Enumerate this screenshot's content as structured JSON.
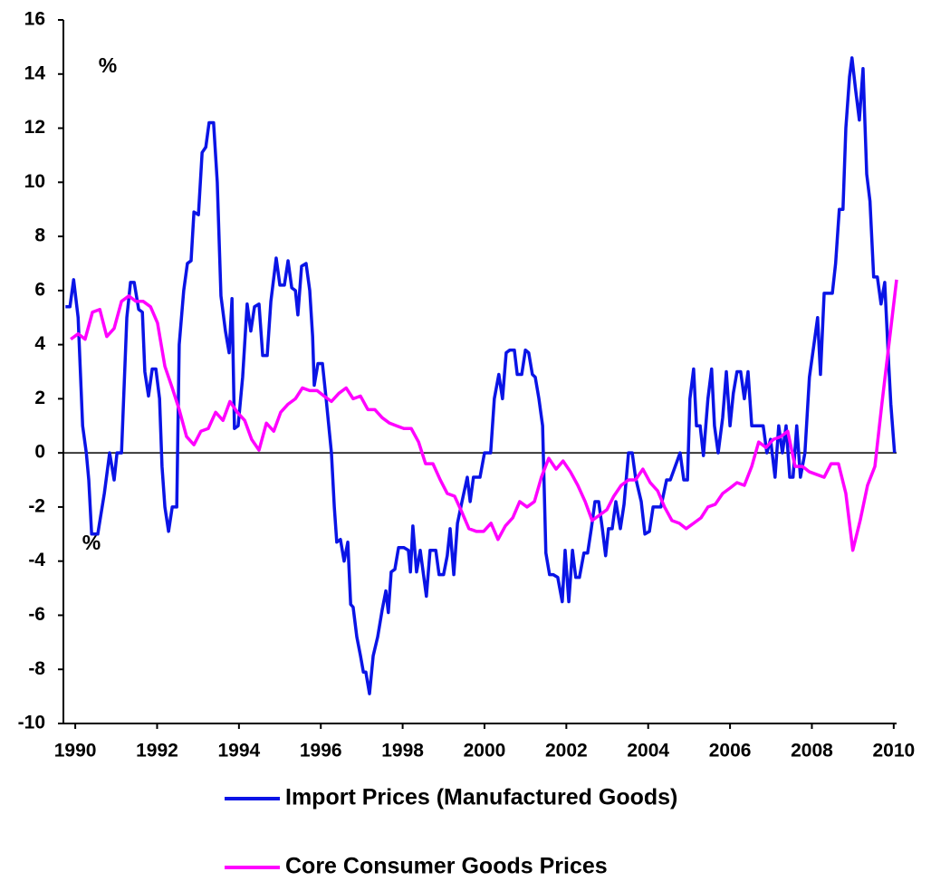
{
  "chart_data": {
    "type": "line",
    "annotations": [
      "%",
      "%"
    ],
    "xlim": [
      1989.71,
      2010.07
    ],
    "xticks": [
      1990,
      1992,
      1994,
      1996,
      1998,
      2000,
      2002,
      2004,
      2006,
      2008,
      2010
    ],
    "ylim": [
      -10,
      16
    ],
    "yticks": [
      -10,
      -8,
      -6,
      -4,
      -2,
      0,
      2,
      4,
      6,
      8,
      10,
      12,
      14,
      16
    ],
    "grid": false,
    "legend": "bottom",
    "series": [
      {
        "name": "Import Prices (Manufactured Goods)",
        "color": "#0a14e6",
        "x": [
          1989.76,
          1989.87,
          1989.96,
          1990.07,
          1990.18,
          1990.27,
          1990.33,
          1990.4,
          1990.55,
          1990.71,
          1990.84,
          1990.95,
          1991.02,
          1991.13,
          1991.26,
          1991.35,
          1991.44,
          1991.55,
          1991.64,
          1991.7,
          1991.79,
          1991.88,
          1991.97,
          1992.06,
          1992.12,
          1992.19,
          1992.28,
          1992.37,
          1992.48,
          1992.54,
          1992.65,
          1992.74,
          1992.83,
          1992.9,
          1993.01,
          1993.1,
          1993.19,
          1993.27,
          1993.38,
          1993.47,
          1993.56,
          1993.67,
          1993.76,
          1993.83,
          1993.89,
          1993.98,
          1994.09,
          1994.2,
          1994.29,
          1994.38,
          1994.49,
          1994.58,
          1994.69,
          1994.78,
          1994.91,
          1995.0,
          1995.11,
          1995.2,
          1995.29,
          1995.38,
          1995.44,
          1995.53,
          1995.64,
          1995.73,
          1995.8,
          1995.84,
          1995.93,
          1996.04,
          1996.13,
          1996.26,
          1996.33,
          1996.39,
          1996.48,
          1996.57,
          1996.66,
          1996.73,
          1996.79,
          1996.88,
          1996.97,
          1997.04,
          1997.1,
          1997.19,
          1997.28,
          1997.39,
          1997.5,
          1997.59,
          1997.65,
          1997.72,
          1997.81,
          1997.9,
          1998.03,
          1998.14,
          1998.19,
          1998.25,
          1998.34,
          1998.43,
          1998.58,
          1998.67,
          1998.81,
          1998.89,
          1999.0,
          1999.09,
          1999.16,
          1999.25,
          1999.34,
          1999.45,
          1999.58,
          1999.65,
          1999.73,
          1999.89,
          2000.0,
          2000.15,
          2000.24,
          2000.35,
          2000.44,
          2000.53,
          2000.62,
          2000.73,
          2000.8,
          2000.91,
          2001.0,
          2001.08,
          2001.17,
          2001.24,
          2001.33,
          2001.42,
          2001.5,
          2001.59,
          2001.68,
          2001.79,
          2001.9,
          2001.97,
          2002.06,
          2002.15,
          2002.23,
          2002.32,
          2002.43,
          2002.52,
          2002.61,
          2002.7,
          2002.79,
          2002.88,
          2002.96,
          2003.03,
          2003.12,
          2003.21,
          2003.32,
          2003.41,
          2003.52,
          2003.61,
          2003.69,
          2003.83,
          2003.92,
          2004.03,
          2004.12,
          2004.23,
          2004.31,
          2004.45,
          2004.54,
          2004.78,
          2004.87,
          2004.96,
          2005.02,
          2005.11,
          2005.18,
          2005.27,
          2005.35,
          2005.46,
          2005.55,
          2005.62,
          2005.71,
          2005.82,
          2005.91,
          2006.0,
          2006.08,
          2006.17,
          2006.26,
          2006.35,
          2006.44,
          2006.53,
          2006.7,
          2006.81,
          2006.9,
          2006.99,
          2007.1,
          2007.19,
          2007.28,
          2007.37,
          2007.46,
          2007.54,
          2007.63,
          2007.72,
          2007.83,
          2007.94,
          2008.05,
          2008.14,
          2008.21,
          2008.3,
          2008.41,
          2008.5,
          2008.58,
          2008.67,
          2008.76,
          2008.83,
          2008.92,
          2008.98,
          2009.07,
          2009.16,
          2009.25,
          2009.34,
          2009.42,
          2009.51,
          2009.6,
          2009.69,
          2009.78,
          2009.87,
          2009.93,
          2010.02
        ],
        "values": [
          5.4,
          5.4,
          6.4,
          5,
          1,
          0,
          -1,
          -3,
          -3,
          -1.5,
          0,
          -1,
          0,
          0,
          5,
          6.3,
          6.3,
          5.3,
          5.2,
          3,
          2.1,
          3.1,
          3.1,
          2,
          -0.5,
          -2,
          -2.9,
          -2,
          -2,
          4,
          6,
          7,
          7.1,
          8.9,
          8.8,
          11.1,
          11.3,
          12.2,
          12.2,
          10,
          5.8,
          4.5,
          3.7,
          5.7,
          0.9,
          1,
          2.8,
          5.5,
          4.5,
          5.4,
          5.5,
          3.6,
          3.6,
          5.6,
          7.2,
          6.2,
          6.2,
          7.1,
          6.1,
          6,
          5.1,
          6.9,
          7,
          6,
          4.3,
          2.5,
          3.3,
          3.3,
          2,
          0,
          -2,
          -3.3,
          -3.2,
          -4,
          -3.3,
          -5.6,
          -5.7,
          -6.8,
          -7.5,
          -8.1,
          -8.1,
          -8.9,
          -7.5,
          -6.8,
          -5.8,
          -5.1,
          -5.9,
          -4.4,
          -4.3,
          -3.5,
          -3.5,
          -3.6,
          -4.4,
          -2.7,
          -4.4,
          -3.6,
          -5.3,
          -3.6,
          -3.6,
          -4.5,
          -4.5,
          -3.8,
          -2.8,
          -4.5,
          -2.6,
          -1.8,
          -0.9,
          -1.8,
          -0.9,
          -0.9,
          0,
          0,
          2,
          2.9,
          2,
          3.7,
          3.8,
          3.8,
          2.9,
          2.9,
          3.8,
          3.7,
          2.9,
          2.8,
          2,
          1,
          -3.7,
          -4.5,
          -4.5,
          -4.6,
          -5.5,
          -3.6,
          -5.5,
          -3.6,
          -4.6,
          -4.6,
          -3.7,
          -3.7,
          -2.8,
          -1.8,
          -1.8,
          -2.8,
          -3.8,
          -2.8,
          -2.8,
          -1.8,
          -2.8,
          -1.9,
          0,
          0,
          -0.9,
          -1.8,
          -3,
          -2.9,
          -2,
          -2,
          -2,
          -1,
          -1,
          0,
          -1,
          -1,
          2,
          3.1,
          1,
          1,
          -0.1,
          2,
          3.1,
          1,
          0,
          1.3,
          3,
          1,
          2.2,
          3,
          3,
          2,
          3,
          1,
          1,
          1,
          0,
          0.5,
          -0.9,
          1,
          0,
          1,
          -0.9,
          -0.9,
          1,
          -0.9,
          0,
          2.8,
          4,
          5,
          2.9,
          5.9,
          5.9,
          5.9,
          7,
          9,
          9,
          12,
          13.9,
          14.6,
          13.4,
          12.3,
          14.2,
          10.3,
          9.3,
          6.5,
          6.5,
          5.5,
          6.3,
          3.5,
          1.8,
          0
        ]
      },
      {
        "name": "Core Consumer Goods Prices",
        "color": "#ff00ff",
        "x": [
          1989.89,
          1990.07,
          1990.24,
          1990.42,
          1990.6,
          1990.77,
          1990.95,
          1991.13,
          1991.31,
          1991.48,
          1991.66,
          1991.84,
          1992.01,
          1992.19,
          1992.37,
          1992.54,
          1992.72,
          1992.9,
          1993.07,
          1993.25,
          1993.43,
          1993.61,
          1993.78,
          1993.96,
          1994.14,
          1994.31,
          1994.49,
          1994.67,
          1994.85,
          1995.02,
          1995.2,
          1995.38,
          1995.55,
          1995.73,
          1995.91,
          1996.08,
          1996.26,
          1996.44,
          1996.62,
          1996.79,
          1996.97,
          1997.15,
          1997.32,
          1997.5,
          1997.68,
          1997.85,
          1998.03,
          1998.21,
          1998.39,
          1998.56,
          1998.74,
          1998.92,
          1999.09,
          1999.27,
          1999.45,
          1999.62,
          1999.8,
          1999.98,
          2000.16,
          2000.33,
          2000.51,
          2000.69,
          2000.86,
          2001.04,
          2001.22,
          2001.39,
          2001.57,
          2001.75,
          2001.92,
          2002.1,
          2002.28,
          2002.46,
          2002.63,
          2002.81,
          2002.99,
          2003.16,
          2003.34,
          2003.52,
          2003.69,
          2003.87,
          2004.05,
          2004.23,
          2004.4,
          2004.58,
          2004.76,
          2004.93,
          2005.11,
          2005.29,
          2005.46,
          2005.64,
          2005.82,
          2006.0,
          2006.17,
          2006.35,
          2006.53,
          2006.7,
          2006.88,
          2007.06,
          2007.24,
          2007.41,
          2007.59,
          2007.77,
          2007.94,
          2008.12,
          2008.3,
          2008.47,
          2008.65,
          2008.83,
          2009.0,
          2009.18,
          2009.36,
          2009.54,
          2009.71,
          2009.89,
          2010.07
        ],
        "values": [
          4.2,
          4.4,
          4.2,
          5.2,
          5.3,
          4.3,
          4.6,
          5.6,
          5.8,
          5.6,
          5.6,
          5.4,
          4.8,
          3.2,
          2.4,
          1.6,
          0.6,
          0.3,
          0.8,
          0.9,
          1.5,
          1.2,
          1.9,
          1.5,
          1.2,
          0.5,
          0.1,
          1.1,
          0.8,
          1.5,
          1.8,
          2,
          2.4,
          2.3,
          2.3,
          2.1,
          1.9,
          2.2,
          2.4,
          2,
          2.1,
          1.6,
          1.6,
          1.3,
          1.1,
          1,
          0.9,
          0.9,
          0.4,
          -0.4,
          -0.4,
          -1,
          -1.5,
          -1.6,
          -2.2,
          -2.8,
          -2.9,
          -2.9,
          -2.6,
          -3.2,
          -2.7,
          -2.4,
          -1.8,
          -2,
          -1.8,
          -0.9,
          -0.2,
          -0.6,
          -0.3,
          -0.7,
          -1.2,
          -1.8,
          -2.5,
          -2.3,
          -2.1,
          -1.6,
          -1.2,
          -1,
          -1,
          -0.6,
          -1.1,
          -1.4,
          -2,
          -2.5,
          -2.6,
          -2.8,
          -2.6,
          -2.4,
          -2,
          -1.9,
          -1.5,
          -1.3,
          -1.1,
          -1.2,
          -0.5,
          0.4,
          0.2,
          0.5,
          0.6,
          0.8,
          -0.5,
          -0.5,
          -0.7,
          -0.8,
          -0.9,
          -0.4,
          -0.4,
          -1.5,
          -3.6,
          -2.5,
          -1.2,
          -0.5,
          1.8,
          4.1,
          6.4
        ]
      }
    ]
  }
}
